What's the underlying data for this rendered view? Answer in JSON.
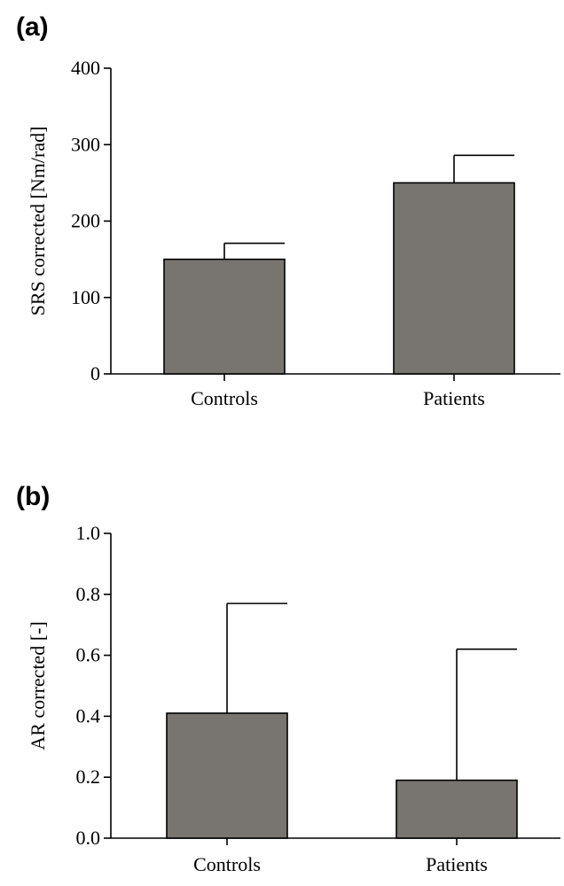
{
  "chart_data": [
    {
      "type": "bar",
      "panel_label": "(a)",
      "categories": [
        "Controls",
        "Patients"
      ],
      "values": [
        150,
        250
      ],
      "error_upper": [
        171,
        286
      ],
      "ylabel": "SRS corrected [Nm/rad]",
      "ylim": [
        0,
        400
      ],
      "yticks": [
        0,
        100,
        200,
        300,
        400
      ],
      "ytick_labels": [
        "0",
        "100",
        "200",
        "300",
        "400"
      ],
      "bar_color": "#78746f",
      "grid": false
    },
    {
      "type": "bar",
      "panel_label": "(b)",
      "categories": [
        "Controls",
        "Patients"
      ],
      "values": [
        0.41,
        0.19
      ],
      "error_upper": [
        0.77,
        0.62
      ],
      "ylabel": "AR corrected [-]",
      "ylim": [
        0,
        1.0
      ],
      "yticks": [
        0,
        0.2,
        0.4,
        0.6,
        0.8,
        1.0
      ],
      "ytick_labels": [
        "0.0",
        "0.2",
        "0.4",
        "0.6",
        "0.8",
        "1.0"
      ],
      "bar_color": "#78746f",
      "grid": false
    }
  ]
}
